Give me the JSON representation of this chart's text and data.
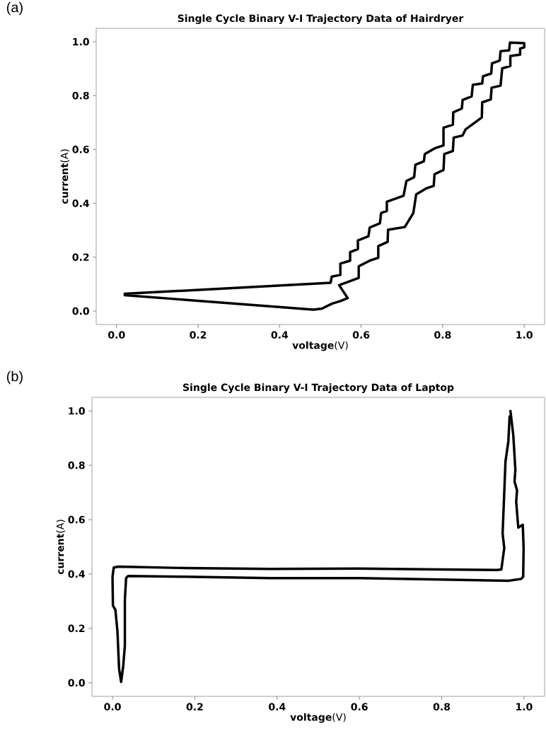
{
  "chart_data": [
    {
      "type": "line",
      "title": "Single Cycle Binary V-I Trajectory Data of Hairdryer",
      "xlabel": "**voltage**(V)",
      "ylabel": "**current**(A)",
      "annotations": [
        "(a)"
      ],
      "xlim": [
        -0.05,
        1.05
      ],
      "ylim": [
        -0.05,
        1.05
      ],
      "xticks": [
        {
          "value": 0,
          "label": "0.0"
        },
        {
          "value": 0.2,
          "label": "0.2"
        },
        {
          "value": 0.4,
          "label": "0.4"
        },
        {
          "value": 0.6,
          "label": "0.6"
        },
        {
          "value": 0.8,
          "label": "0.8"
        },
        {
          "value": 1,
          "label": "1.0"
        }
      ],
      "yticks": [
        {
          "value": 0,
          "label": "0.0"
        },
        {
          "value": 0.2,
          "label": "0.2"
        },
        {
          "value": 0.4,
          "label": "0.4"
        },
        {
          "value": 0.6,
          "label": "0.6"
        },
        {
          "value": 0.8,
          "label": "0.8"
        },
        {
          "value": 1,
          "label": "1.0"
        }
      ],
      "series": [
        {
          "color": "#000000",
          "x": [
            0.02,
            0.525,
            0.528,
            0.549,
            0.549,
            0.573,
            0.573,
            0.592,
            0.592,
            0.618,
            0.621,
            0.646,
            0.649,
            0.663,
            0.663,
            0.704,
            0.711,
            0.73,
            0.733,
            0.754,
            0.756,
            0.78,
            0.802,
            0.802,
            0.825,
            0.826,
            0.847,
            0.849,
            0.871,
            0.874,
            0.897,
            0.899,
            0.919,
            0.921,
            0.94,
            0.942,
            0.963,
            0.965,
            1.0,
            1.0,
            0.99,
            0.99,
            0.966,
            0.966,
            0.946,
            0.942,
            0.92,
            0.918,
            0.897,
            0.896,
            0.856,
            0.849,
            0.827,
            0.825,
            0.804,
            0.802,
            0.78,
            0.778,
            0.759,
            0.735,
            0.728,
            0.707,
            0.666,
            0.665,
            0.642,
            0.642,
            0.621,
            0.594,
            0.594,
            0.546,
            0.567,
            0.549,
            0.528,
            0.504,
            0.483,
            0.02
          ],
          "values": [
            0.064,
            0.105,
            0.128,
            0.134,
            0.176,
            0.187,
            0.219,
            0.23,
            0.262,
            0.278,
            0.31,
            0.326,
            0.364,
            0.372,
            0.406,
            0.428,
            0.483,
            0.497,
            0.543,
            0.556,
            0.583,
            0.604,
            0.615,
            0.681,
            0.692,
            0.738,
            0.752,
            0.784,
            0.797,
            0.84,
            0.845,
            0.872,
            0.882,
            0.92,
            0.93,
            0.965,
            0.968,
            0.997,
            0.995,
            0.979,
            0.975,
            0.952,
            0.947,
            0.91,
            0.901,
            0.837,
            0.829,
            0.786,
            0.775,
            0.719,
            0.674,
            0.652,
            0.644,
            0.594,
            0.583,
            0.524,
            0.508,
            0.465,
            0.455,
            0.433,
            0.364,
            0.312,
            0.302,
            0.257,
            0.241,
            0.198,
            0.187,
            0.166,
            0.123,
            0.096,
            0.048,
            0.037,
            0.027,
            0.009,
            0.005,
            0.059
          ]
        }
      ]
    },
    {
      "type": "line",
      "title": "Single Cycle Binary V-I Trajectory Data of Laptop",
      "xlabel": "**voltage**(V)",
      "ylabel": "**current**(A)",
      "annotations": [
        "(b)"
      ],
      "xlim": [
        -0.05,
        1.05
      ],
      "ylim": [
        -0.05,
        1.05
      ],
      "xticks": [
        {
          "value": 0,
          "label": "0.0"
        },
        {
          "value": 0.2,
          "label": "0.2"
        },
        {
          "value": 0.4,
          "label": "0.4"
        },
        {
          "value": 0.6,
          "label": "0.6"
        },
        {
          "value": 0.8,
          "label": "0.8"
        },
        {
          "value": 1,
          "label": "1.0"
        }
      ],
      "yticks": [
        {
          "value": 0,
          "label": "0.0"
        },
        {
          "value": 0.2,
          "label": "0.2"
        },
        {
          "value": 0.4,
          "label": "0.4"
        },
        {
          "value": 0.6,
          "label": "0.6"
        },
        {
          "value": 0.8,
          "label": "0.8"
        },
        {
          "value": 1,
          "label": "1.0"
        }
      ],
      "series": [
        {
          "color": "#000000",
          "x": [
            0.967,
            0.974,
            0.979,
            0.977,
            0.983,
            0.981,
            0.986,
            0.997,
            0.999,
            0.998,
            0.993,
            0.962,
            0.797,
            0.59,
            0.383,
            0.176,
            0.038,
            0.033,
            0.03,
            0.03,
            0.026,
            0.021,
            0.016,
            0.012,
            0.007,
            0.001,
            0.0,
            0.003,
            0.014,
            0.176,
            0.383,
            0.59,
            0.797,
            0.934,
            0.945,
            0.952,
            0.948,
            0.955,
            0.962,
            0.965
          ],
          "values": [
            1.0,
            0.91,
            0.783,
            0.74,
            0.708,
            0.666,
            0.571,
            0.581,
            0.496,
            0.39,
            0.382,
            0.375,
            0.38,
            0.385,
            0.385,
            0.39,
            0.393,
            0.385,
            0.305,
            0.136,
            0.062,
            0.003,
            0.051,
            0.189,
            0.268,
            0.284,
            0.39,
            0.424,
            0.427,
            0.422,
            0.419,
            0.42,
            0.417,
            0.415,
            0.417,
            0.496,
            0.549,
            0.814,
            0.889,
            0.98
          ]
        }
      ]
    }
  ]
}
